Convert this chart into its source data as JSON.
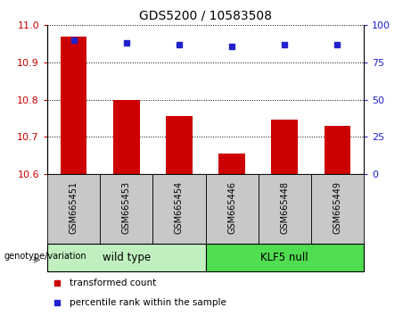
{
  "title": "GDS5200 / 10583508",
  "categories": [
    "GSM665451",
    "GSM665453",
    "GSM665454",
    "GSM665446",
    "GSM665448",
    "GSM665449"
  ],
  "bar_values": [
    10.97,
    10.8,
    10.755,
    10.655,
    10.745,
    10.73
  ],
  "dot_values": [
    90,
    88,
    87,
    86,
    87,
    87
  ],
  "ymin": 10.6,
  "ymax": 11.0,
  "yticks": [
    10.6,
    10.7,
    10.8,
    10.9,
    11.0
  ],
  "right_yticks": [
    0,
    25,
    50,
    75,
    100
  ],
  "bar_color": "#cc0000",
  "dot_color": "#2222cc",
  "bar_bottom": 10.6,
  "groups": [
    {
      "label": "wild type",
      "start": 0,
      "end": 2,
      "color": "#c0f0c0"
    },
    {
      "label": "KLF5 null",
      "start": 3,
      "end": 5,
      "color": "#50dd50"
    }
  ],
  "legend_items": [
    {
      "label": "transformed count",
      "color": "#cc0000",
      "marker": "s"
    },
    {
      "label": "percentile rank within the sample",
      "color": "#2222cc",
      "marker": "s"
    }
  ],
  "genotype_label": "genotype/variation",
  "left_tick_color": "#cc0000",
  "right_tick_color": "#2222cc",
  "tick_bg_color": "#c8c8c8",
  "group_border_color": "#000000"
}
